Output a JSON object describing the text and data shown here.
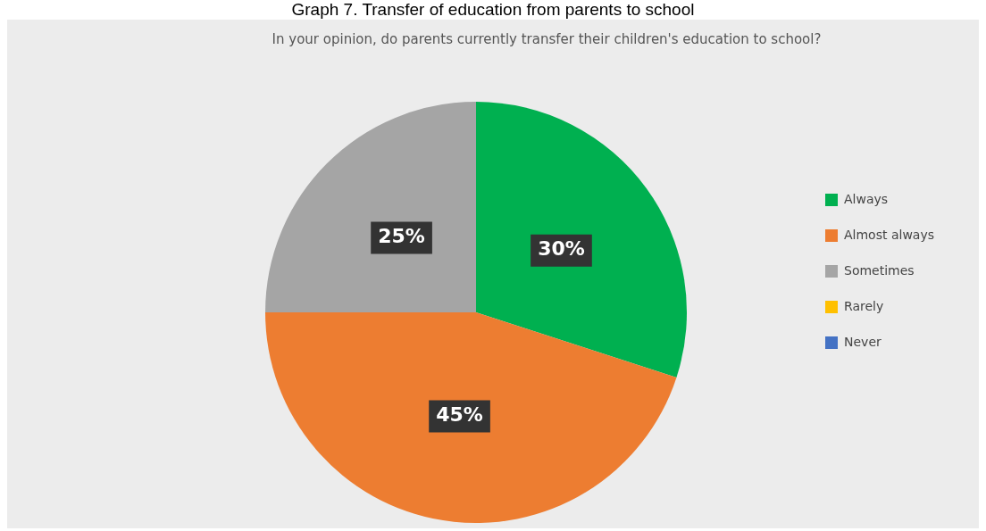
{
  "chart_data": {
    "type": "pie",
    "title": "Graph 7. Transfer of education from parents to school",
    "subtitle": "In your opinion, do parents currently transfer their children's education to school?",
    "categories": [
      "Always",
      "Almost always",
      "Sometimes",
      "Rarely",
      "Never"
    ],
    "values": [
      30,
      45,
      25,
      0,
      0
    ],
    "colors": [
      "#00b050",
      "#ed7d31",
      "#a5a5a5",
      "#ffc000",
      "#4472c4"
    ],
    "value_labels": [
      "30%",
      "45%",
      "25%",
      null,
      null
    ],
    "legend": "right"
  }
}
